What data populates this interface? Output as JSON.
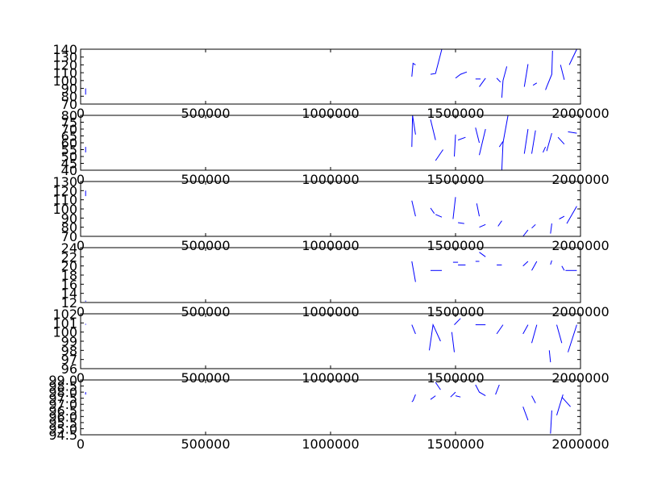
{
  "chart_data": [
    {
      "type": "line",
      "xlim": [
        0,
        2000000
      ],
      "ylim": [
        70,
        140
      ],
      "xticks": [
        "0",
        "500000",
        "1000000",
        "1500000",
        "2000000"
      ],
      "yticks": [
        "70",
        "80",
        "90",
        "100",
        "110",
        "120",
        "130",
        "140"
      ],
      "color": "#0000ff",
      "segments": [
        [
          [
            20000,
            90
          ],
          [
            20000,
            82
          ]
        ],
        [
          [
            1325000,
            105
          ],
          [
            1330000,
            122
          ],
          [
            1340000,
            120
          ]
        ],
        [
          [
            1400000,
            108
          ],
          [
            1420000,
            109
          ],
          [
            1445000,
            140
          ]
        ],
        [
          [
            1500000,
            103
          ],
          [
            1520000,
            108
          ],
          [
            1545000,
            111
          ]
        ],
        [
          [
            1580000,
            102
          ],
          [
            1600000,
            102
          ]
        ],
        [
          [
            1595000,
            92
          ],
          [
            1620000,
            103
          ]
        ],
        [
          [
            1665000,
            103
          ],
          [
            1680000,
            98
          ]
        ],
        [
          [
            1685000,
            78
          ],
          [
            1690000,
            100
          ],
          [
            1705000,
            118
          ]
        ],
        [
          [
            1775000,
            92
          ],
          [
            1790000,
            121
          ]
        ],
        [
          [
            1810000,
            94
          ],
          [
            1825000,
            97
          ]
        ],
        [
          [
            1860000,
            88
          ],
          [
            1865000,
            92
          ],
          [
            1885000,
            108
          ],
          [
            1888000,
            138
          ]
        ],
        [
          [
            1920000,
            120
          ],
          [
            1935000,
            101
          ]
        ],
        [
          [
            1955000,
            120
          ],
          [
            1985000,
            140
          ]
        ]
      ]
    },
    {
      "type": "line",
      "xlim": [
        0,
        2000000
      ],
      "ylim": [
        40,
        80
      ],
      "xticks": [
        "0",
        "500000",
        "1000000",
        "1500000",
        "2000000"
      ],
      "yticks": [
        "40",
        "45",
        "50",
        "55",
        "60",
        "65",
        "70",
        "75",
        "80"
      ],
      "color": "#0000ff",
      "segments": [
        [
          [
            20000,
            57
          ],
          [
            20000,
            53
          ]
        ],
        [
          [
            1325000,
            57
          ],
          [
            1328000,
            80
          ],
          [
            1340000,
            66
          ]
        ],
        [
          [
            1400000,
            77
          ],
          [
            1420000,
            62
          ]
        ],
        [
          [
            1420000,
            47
          ],
          [
            1450000,
            55
          ]
        ],
        [
          [
            1495000,
            50
          ],
          [
            1500000,
            66
          ]
        ],
        [
          [
            1510000,
            62
          ],
          [
            1540000,
            64
          ]
        ],
        [
          [
            1580000,
            71
          ],
          [
            1595000,
            60
          ]
        ],
        [
          [
            1595000,
            51
          ],
          [
            1620000,
            70
          ]
        ],
        [
          [
            1675000,
            57
          ],
          [
            1690000,
            61
          ]
        ],
        [
          [
            1685000,
            40
          ],
          [
            1690000,
            60
          ],
          [
            1710000,
            80
          ]
        ],
        [
          [
            1775000,
            52
          ],
          [
            1790000,
            70
          ]
        ],
        [
          [
            1805000,
            52
          ],
          [
            1820000,
            69
          ]
        ],
        [
          [
            1850000,
            53
          ],
          [
            1860000,
            57
          ]
        ],
        [
          [
            1865000,
            54
          ],
          [
            1885000,
            67
          ]
        ],
        [
          [
            1910000,
            64
          ],
          [
            1935000,
            59
          ]
        ],
        [
          [
            1950000,
            68
          ],
          [
            1985000,
            67
          ]
        ]
      ]
    },
    {
      "type": "line",
      "xlim": [
        0,
        2000000
      ],
      "ylim": [
        70,
        130
      ],
      "xticks": [
        "0",
        "500000",
        "1000000",
        "1500000",
        "2000000"
      ],
      "yticks": [
        "70",
        "80",
        "90",
        "100",
        "110",
        "120",
        "130"
      ],
      "color": "#0000ff",
      "segments": [
        [
          [
            20000,
            120
          ],
          [
            20000,
            114
          ]
        ],
        [
          [
            1325000,
            109
          ],
          [
            1340000,
            92
          ]
        ],
        [
          [
            1400000,
            101
          ],
          [
            1415000,
            95
          ]
        ],
        [
          [
            1420000,
            94
          ],
          [
            1445000,
            91
          ]
        ],
        [
          [
            1490000,
            89
          ],
          [
            1500000,
            113
          ]
        ],
        [
          [
            1510000,
            85
          ],
          [
            1535000,
            84
          ]
        ],
        [
          [
            1585000,
            106
          ],
          [
            1595000,
            92
          ]
        ],
        [
          [
            1595000,
            80
          ],
          [
            1620000,
            83
          ]
        ],
        [
          [
            1670000,
            81
          ],
          [
            1685000,
            87
          ]
        ],
        [
          [
            1770000,
            70
          ],
          [
            1790000,
            77
          ]
        ],
        [
          [
            1805000,
            79
          ],
          [
            1820000,
            83
          ]
        ],
        [
          [
            1880000,
            73
          ],
          [
            1885000,
            84
          ]
        ],
        [
          [
            1915000,
            89
          ],
          [
            1935000,
            92
          ]
        ],
        [
          [
            1945000,
            84
          ],
          [
            1985000,
            103
          ]
        ]
      ]
    },
    {
      "type": "line",
      "xlim": [
        0,
        2000000
      ],
      "ylim": [
        12,
        24
      ],
      "xticks": [
        "0",
        "500000",
        "1000000",
        "1500000",
        "2000000"
      ],
      "yticks": [
        "12",
        "14",
        "16",
        "18",
        "20",
        "22",
        "24"
      ],
      "color": "#0000ff",
      "segments": [
        [
          [
            20000,
            12.4
          ],
          [
            20000,
            12.2
          ]
        ],
        [
          [
            1325000,
            21
          ],
          [
            1340000,
            16.5
          ]
        ],
        [
          [
            1400000,
            19
          ],
          [
            1445000,
            19
          ]
        ],
        [
          [
            1490000,
            20.8
          ],
          [
            1510000,
            20.8
          ]
        ],
        [
          [
            1510000,
            20.2
          ],
          [
            1540000,
            20.2
          ]
        ],
        [
          [
            1580000,
            21
          ],
          [
            1595000,
            21
          ]
        ],
        [
          [
            1595000,
            23
          ],
          [
            1620000,
            22
          ]
        ],
        [
          [
            1665000,
            20.2
          ],
          [
            1685000,
            20.2
          ]
        ],
        [
          [
            1770000,
            20
          ],
          [
            1790000,
            21
          ]
        ],
        [
          [
            1805000,
            19
          ],
          [
            1825000,
            21
          ]
        ],
        [
          [
            1880000,
            20.3
          ],
          [
            1885000,
            21.2
          ]
        ],
        [
          [
            1925000,
            20
          ],
          [
            1935000,
            19
          ]
        ],
        [
          [
            1940000,
            19
          ],
          [
            1985000,
            19
          ]
        ]
      ]
    },
    {
      "type": "line",
      "xlim": [
        0,
        2000000
      ],
      "ylim": [
        96,
        102
      ],
      "xticks": [
        "0",
        "500000",
        "1000000",
        "1500000",
        "2000000"
      ],
      "yticks": [
        "96",
        "97",
        "98",
        "99",
        "100",
        "101",
        "102"
      ],
      "color": "#0000ff",
      "segments": [
        [
          [
            20000,
            100.9
          ],
          [
            20000,
            100.8
          ]
        ],
        [
          [
            1325000,
            100.8
          ],
          [
            1340000,
            99.8
          ]
        ],
        [
          [
            1395000,
            98
          ],
          [
            1410000,
            100.8
          ],
          [
            1440000,
            99
          ]
        ],
        [
          [
            1485000,
            100
          ],
          [
            1495000,
            97.8
          ]
        ],
        [
          [
            1495000,
            100.8
          ],
          [
            1520000,
            101.5
          ]
        ],
        [
          [
            1580000,
            100.8
          ],
          [
            1595000,
            100.8
          ]
        ],
        [
          [
            1595000,
            100.8
          ],
          [
            1620000,
            100.8
          ]
        ],
        [
          [
            1665000,
            99.8
          ],
          [
            1690000,
            100.8
          ]
        ],
        [
          [
            1770000,
            99.8
          ],
          [
            1790000,
            100.8
          ]
        ],
        [
          [
            1805000,
            98.8
          ],
          [
            1825000,
            100.8
          ]
        ],
        [
          [
            1875000,
            98
          ],
          [
            1880000,
            96.7
          ]
        ],
        [
          [
            1905000,
            100.8
          ],
          [
            1925000,
            98.8
          ]
        ],
        [
          [
            1950000,
            97.8
          ],
          [
            1985000,
            100.8
          ]
        ]
      ]
    },
    {
      "type": "line",
      "xlim": [
        0,
        2000000
      ],
      "ylim": [
        94.5,
        99.0
      ],
      "xticks": [
        "0",
        "500000",
        "1000000",
        "1500000",
        "2000000"
      ],
      "yticks": [
        "94.5",
        "95.0",
        "95.5",
        "96.0",
        "96.5",
        "97.0",
        "97.5",
        "98.0",
        "98.5",
        "99.0"
      ],
      "color": "#0000ff",
      "segments": [
        [
          [
            20000,
            98.0
          ],
          [
            20000,
            97.8
          ]
        ],
        [
          [
            1325000,
            97.2
          ],
          [
            1330000,
            97.3
          ],
          [
            1340000,
            97.8
          ]
        ],
        [
          [
            1400000,
            97.4
          ],
          [
            1420000,
            97.7
          ]
        ],
        [
          [
            1420000,
            98.8
          ],
          [
            1440000,
            98.2
          ]
        ],
        [
          [
            1480000,
            97.6
          ],
          [
            1500000,
            98.0
          ]
        ],
        [
          [
            1500000,
            97.7
          ],
          [
            1520000,
            97.6
          ]
        ],
        [
          [
            1580000,
            98.6
          ],
          [
            1595000,
            98.0
          ],
          [
            1620000,
            97.7
          ]
        ],
        [
          [
            1660000,
            97.8
          ],
          [
            1675000,
            98.6
          ]
        ],
        [
          [
            1770000,
            96.8
          ],
          [
            1790000,
            95.7
          ]
        ],
        [
          [
            1805000,
            97.7
          ],
          [
            1820000,
            97.1
          ]
        ],
        [
          [
            1880000,
            94.6
          ],
          [
            1885000,
            96.5
          ]
        ],
        [
          [
            1905000,
            96.1
          ],
          [
            1930000,
            97.8
          ]
        ],
        [
          [
            1925000,
            97.6
          ],
          [
            1960000,
            96.8
          ]
        ]
      ]
    }
  ]
}
